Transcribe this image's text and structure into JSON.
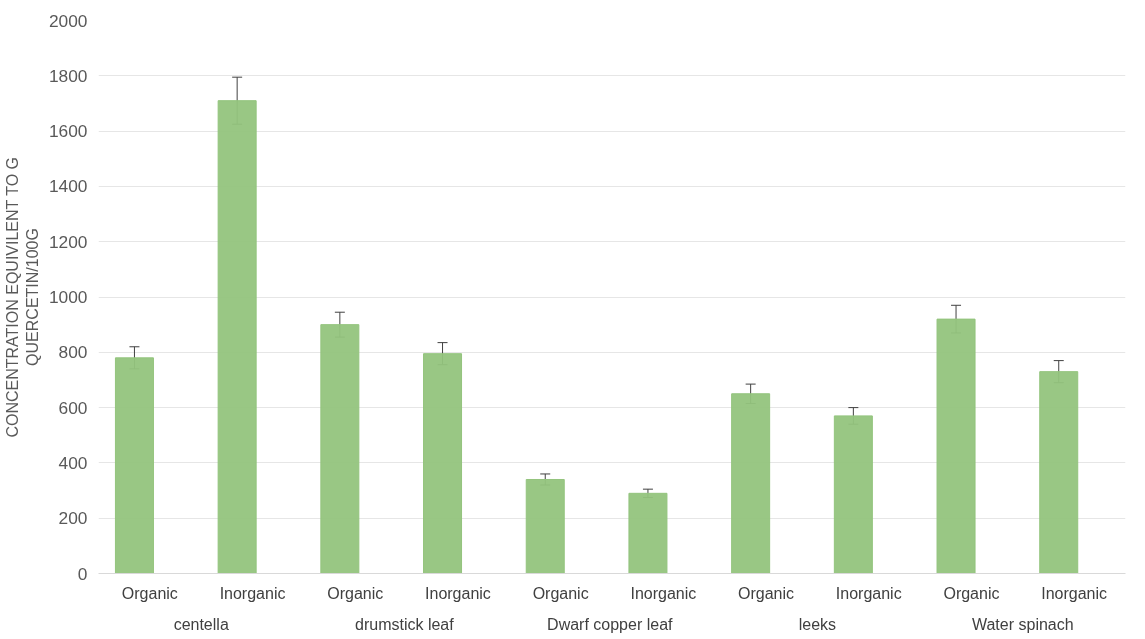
{
  "chart_data": {
    "type": "bar",
    "ylabel": "CONCENTRATION EQUIVILENT TO G\nQUERCETIN/100G",
    "categories": [
      "Organic",
      "Inorganic",
      "Organic",
      "Inorganic",
      "Organic",
      "Inorganic",
      "Organic",
      "Inorganic",
      "Organic",
      "Inorganic"
    ],
    "annotations": [
      "centella",
      "drumstick  leaf",
      "Dwarf  copper leaf",
      "leeks",
      "Water spinach"
    ],
    "series": [
      {
        "color": "#93c47d",
        "values": [
          780,
          1710,
          900,
          795,
          340,
          290,
          650,
          570,
          920,
          730
        ],
        "errors": [
          40,
          85,
          45,
          40,
          20,
          15,
          35,
          30,
          50,
          40
        ]
      }
    ],
    "ylim": [
      0,
      2000
    ],
    "yticks": [
      0,
      200,
      400,
      600,
      800,
      1000,
      1200,
      1400,
      1600,
      1800,
      2000
    ],
    "grid": "y"
  }
}
